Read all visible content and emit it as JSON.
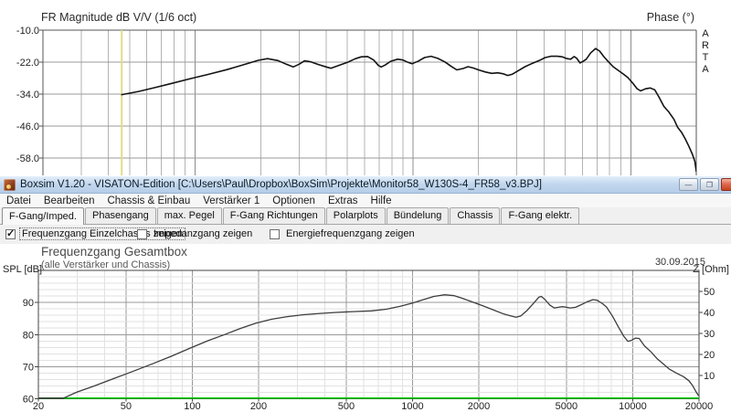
{
  "arta": {
    "logo_text": "ARTA",
    "y_tick_labels": [
      "-10.0",
      "-22.0",
      "-34.0",
      "-46.0",
      "-58.0"
    ]
  },
  "boxsim": {
    "titlebar": {
      "title": "Boxsim V1.20 - VISATON-Edition [C:\\Users\\Paul\\Dropbox\\BoxSim\\Projekte\\Monitor58_W130S-4_FR58_v3.BPJ]",
      "buttons": [
        {
          "name": "minimize",
          "glyph": "—"
        },
        {
          "name": "maximize",
          "glyph": "❐"
        },
        {
          "name": "close",
          "glyph": "✕"
        }
      ]
    },
    "menu": [
      "Datei",
      "Bearbeiten",
      "Chassis & Einbau",
      "Verstärker 1",
      "Optionen",
      "Extras",
      "Hilfe"
    ],
    "tabs": [
      {
        "label": "F-Gang/Imped.",
        "active": true
      },
      {
        "label": "Phasengang",
        "active": false
      },
      {
        "label": "max. Pegel",
        "active": false
      },
      {
        "label": "F-Gang Richtungen",
        "active": false
      },
      {
        "label": "Polarplots",
        "active": false
      },
      {
        "label": "Bündelung",
        "active": false
      },
      {
        "label": "Chassis",
        "active": false
      },
      {
        "label": "F-Gang elektr.",
        "active": false
      }
    ],
    "checkboxes": [
      {
        "label": "Frequenzgang Einzelchassis zeigen",
        "checked": true,
        "focused": true
      },
      {
        "label": "Impedanzgang zeigen",
        "checked": false,
        "focused": false
      },
      {
        "label": "Energiefrequenzgang zeigen",
        "checked": false,
        "focused": false
      }
    ]
  },
  "chart_data": [
    {
      "id": "arta-fr",
      "type": "line",
      "title": "FR Magnitude dB V/V (1/6 oct)",
      "right_axis_label": "Phase (°)",
      "x_axis": {
        "scale": "log",
        "min": 20,
        "max": 20000,
        "unit": "Hz"
      },
      "y_axis": {
        "unit": "dB",
        "min": -64.5,
        "max": -10,
        "ticks": [
          -10,
          -22,
          -34,
          -46,
          -58
        ]
      },
      "cursor_line": {
        "freq": 46,
        "color": "#e0dc86"
      },
      "grid": "on",
      "series": [
        {
          "name": "FR magnitude",
          "color": "#141414",
          "points": [
            [
              46,
              -34.2
            ],
            [
              55,
              -33.0
            ],
            [
              65,
              -31.6
            ],
            [
              78,
              -30.0
            ],
            [
              95,
              -28.2
            ],
            [
              115,
              -26.6
            ],
            [
              140,
              -24.8
            ],
            [
              168,
              -22.9
            ],
            [
              195,
              -21.3
            ],
            [
              215,
              -20.7
            ],
            [
              240,
              -21.4
            ],
            [
              262,
              -22.8
            ],
            [
              282,
              -23.8
            ],
            [
              300,
              -22.8
            ],
            [
              318,
              -21.5
            ],
            [
              340,
              -21.9
            ],
            [
              368,
              -22.9
            ],
            [
              400,
              -23.8
            ],
            [
              420,
              -24.3
            ],
            [
              455,
              -23.3
            ],
            [
              500,
              -22.1
            ],
            [
              545,
              -20.7
            ],
            [
              580,
              -20.0
            ],
            [
              620,
              -19.9
            ],
            [
              660,
              -21.2
            ],
            [
              695,
              -23.3
            ],
            [
              715,
              -23.8
            ],
            [
              745,
              -23.1
            ],
            [
              790,
              -21.7
            ],
            [
              850,
              -20.9
            ],
            [
              900,
              -21.2
            ],
            [
              950,
              -22.1
            ],
            [
              990,
              -22.6
            ],
            [
              1060,
              -21.6
            ],
            [
              1130,
              -20.3
            ],
            [
              1210,
              -19.8
            ],
            [
              1300,
              -20.6
            ],
            [
              1400,
              -21.9
            ],
            [
              1500,
              -23.6
            ],
            [
              1590,
              -24.9
            ],
            [
              1700,
              -24.4
            ],
            [
              1790,
              -23.7
            ],
            [
              1890,
              -24.2
            ],
            [
              2000,
              -24.9
            ],
            [
              2150,
              -25.7
            ],
            [
              2300,
              -26.2
            ],
            [
              2450,
              -26.0
            ],
            [
              2600,
              -26.4
            ],
            [
              2720,
              -27.0
            ],
            [
              2850,
              -26.6
            ],
            [
              3050,
              -25.2
            ],
            [
              3270,
              -23.7
            ],
            [
              3500,
              -22.6
            ],
            [
              3800,
              -21.4
            ],
            [
              4050,
              -20.3
            ],
            [
              4300,
              -19.8
            ],
            [
              4600,
              -19.8
            ],
            [
              4850,
              -20.0
            ],
            [
              5100,
              -20.7
            ],
            [
              5300,
              -20.9
            ],
            [
              5500,
              -19.9
            ],
            [
              5650,
              -20.6
            ],
            [
              5850,
              -22.3
            ],
            [
              6050,
              -21.7
            ],
            [
              6250,
              -20.9
            ],
            [
              6550,
              -18.5
            ],
            [
              6900,
              -16.9
            ],
            [
              7200,
              -17.9
            ],
            [
              7500,
              -19.8
            ],
            [
              7900,
              -21.9
            ],
            [
              8300,
              -23.7
            ],
            [
              8700,
              -24.9
            ],
            [
              9200,
              -26.3
            ],
            [
              9700,
              -27.8
            ],
            [
              10200,
              -29.8
            ],
            [
              10700,
              -32.0
            ],
            [
              11100,
              -32.8
            ],
            [
              11700,
              -32.0
            ],
            [
              12300,
              -31.7
            ],
            [
              12900,
              -32.4
            ],
            [
              13500,
              -35.2
            ],
            [
              14200,
              -38.6
            ],
            [
              15000,
              -40.8
            ],
            [
              15800,
              -43.5
            ],
            [
              16400,
              -46.4
            ],
            [
              17100,
              -48.3
            ],
            [
              17800,
              -50.8
            ],
            [
              18500,
              -53.6
            ],
            [
              19200,
              -56.6
            ],
            [
              19700,
              -59.2
            ],
            [
              20000,
              -63.0
            ]
          ]
        }
      ]
    },
    {
      "id": "boxsim-fr",
      "type": "line",
      "title": "Frequenzgang Gesamtbox",
      "subtitle": "(alle Verstärker und Chassis)",
      "date": "30.09.2015",
      "x_axis": {
        "scale": "log",
        "min": 20,
        "max": 20000,
        "unit": "Hz",
        "ticks": [
          20,
          50,
          100,
          200,
          500,
          1000,
          2000,
          5000,
          10000,
          20000
        ]
      },
      "y_axis": {
        "label": "SPL [dB]",
        "min": 60,
        "max": 100,
        "ticks": [
          60,
          70,
          80,
          90
        ],
        "minor_step": 2
      },
      "y2_axis": {
        "label": "Z [Ohm]",
        "min": 0,
        "max": 60,
        "ticks": [
          10,
          20,
          30,
          40,
          50
        ]
      },
      "baseline": {
        "spl": 60.2,
        "color": "#00c800"
      },
      "grid": "on",
      "series": [
        {
          "name": "Frequenzgang Gesamtbox",
          "color": "#3d3d3d",
          "points": [
            [
              20,
              60.2
            ],
            [
              26,
              60.2
            ],
            [
              30,
              62.1
            ],
            [
              36,
              64.0
            ],
            [
              44,
              66.3
            ],
            [
              54,
              68.6
            ],
            [
              66,
              70.9
            ],
            [
              80,
              73.2
            ],
            [
              98,
              75.8
            ],
            [
              118,
              78.1
            ],
            [
              140,
              80.0
            ],
            [
              165,
              81.9
            ],
            [
              195,
              83.6
            ],
            [
              230,
              84.8
            ],
            [
              270,
              85.6
            ],
            [
              320,
              86.2
            ],
            [
              380,
              86.6
            ],
            [
              450,
              86.9
            ],
            [
              550,
              87.2
            ],
            [
              650,
              87.4
            ],
            [
              760,
              87.9
            ],
            [
              880,
              88.8
            ],
            [
              1000,
              89.8
            ],
            [
              1120,
              90.9
            ],
            [
              1250,
              91.9
            ],
            [
              1400,
              92.4
            ],
            [
              1550,
              92.1
            ],
            [
              1700,
              91.2
            ],
            [
              1900,
              90.0
            ],
            [
              2100,
              88.9
            ],
            [
              2350,
              87.6
            ],
            [
              2600,
              86.4
            ],
            [
              2800,
              85.8
            ],
            [
              2950,
              85.4
            ],
            [
              3100,
              85.8
            ],
            [
              3300,
              87.4
            ],
            [
              3550,
              89.8
            ],
            [
              3750,
              91.7
            ],
            [
              3850,
              91.9
            ],
            [
              4000,
              90.9
            ],
            [
              4200,
              89.2
            ],
            [
              4400,
              88.3
            ],
            [
              4600,
              88.5
            ],
            [
              4800,
              88.7
            ],
            [
              5000,
              88.5
            ],
            [
              5200,
              88.3
            ],
            [
              5500,
              88.5
            ],
            [
              5800,
              89.2
            ],
            [
              6200,
              90.2
            ],
            [
              6600,
              90.9
            ],
            [
              6900,
              90.7
            ],
            [
              7300,
              89.6
            ],
            [
              7600,
              88.6
            ],
            [
              8100,
              85.7
            ],
            [
              8600,
              82.4
            ],
            [
              9100,
              79.5
            ],
            [
              9500,
              77.9
            ],
            [
              9800,
              78.1
            ],
            [
              10300,
              78.9
            ],
            [
              10700,
              78.8
            ],
            [
              11300,
              76.5
            ],
            [
              12100,
              74.6
            ],
            [
              12900,
              72.5
            ],
            [
              13600,
              71.2
            ],
            [
              14600,
              69.3
            ],
            [
              15800,
              68.0
            ],
            [
              17000,
              66.9
            ],
            [
              18000,
              65.6
            ],
            [
              18700,
              64.1
            ],
            [
              19300,
              62.4
            ],
            [
              19800,
              61.2
            ],
            [
              20000,
              61.0
            ]
          ]
        }
      ]
    }
  ]
}
